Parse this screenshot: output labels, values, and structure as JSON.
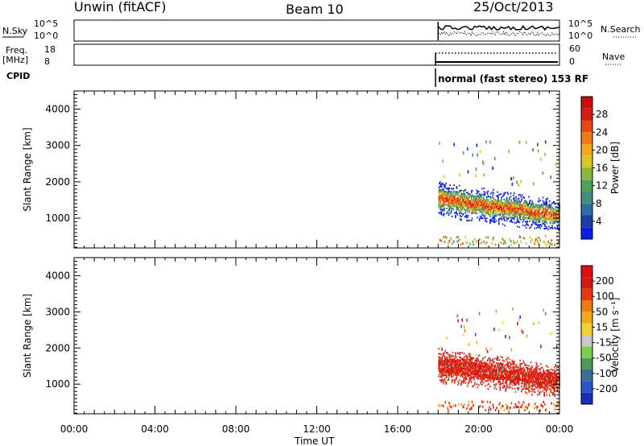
{
  "header": {
    "station": "Unwin (fitACF)",
    "beam": "Beam 10",
    "date": "25/Oct/2013"
  },
  "status_panels": {
    "nsky_label": "N.Sky",
    "nsky_ticks": [
      "10^5",
      "10^0"
    ],
    "nsearch_label": "N.Search",
    "nsearch_ticks": [
      "10^5",
      "10^0"
    ],
    "freq_label": "Freq.",
    "freq_unit": "[MHz]",
    "freq_ticks": [
      "18",
      "8"
    ],
    "nave_label": "Nave",
    "nave_ticks": [
      "60",
      "0"
    ],
    "cpid_label": "CPID",
    "cpid_text": "normal (fast stereo) 153 RF"
  },
  "chart_data": [
    {
      "type": "heatmap",
      "parameter": "Power",
      "xlabel": "Time UT",
      "ylabel": "Slant Range [km]",
      "ylim": [
        180,
        4500
      ],
      "yticks": [
        "4000",
        "3000",
        "2000",
        "1000"
      ],
      "xticks": [
        "00:00",
        "04:00",
        "08:00",
        "12:00",
        "16:00",
        "20:00",
        "00:00"
      ],
      "data_start": "18:00",
      "data_end": "24:00",
      "colorbar": {
        "label": "Power [dB]",
        "ticks": [
          "28",
          "24",
          "20",
          "16",
          "12",
          "8",
          "4"
        ],
        "colors": [
          "#0a1fe6",
          "#1b3fa8",
          "#2d6fa3",
          "#3e8f7f",
          "#4fa05a",
          "#8ab83d",
          "#d9c62a",
          "#f2a81d",
          "#f07a14",
          "#e64a12",
          "#d21c14",
          "#cc0d0d"
        ]
      }
    },
    {
      "type": "heatmap",
      "parameter": "Velocity",
      "xlabel": "Time UT",
      "ylabel": "Slant Range [km]",
      "ylim": [
        180,
        4500
      ],
      "yticks": [
        "4000",
        "3000",
        "2000",
        "1000"
      ],
      "xticks": [
        "00:00",
        "04:00",
        "08:00",
        "12:00",
        "16:00",
        "20:00",
        "00:00"
      ],
      "data_start": "18:00",
      "data_end": "24:00",
      "colorbar": {
        "label": "Velocity [m s⁻¹]",
        "ticks": [
          "200",
          "100",
          "50",
          "15",
          "-15",
          "-50",
          "-100",
          "-200"
        ],
        "colors": [
          "#1a2fb8",
          "#2a55c9",
          "#3b6f9a",
          "#4e9a5a",
          "#7fcf4a",
          "#c9c9c9",
          "#f2d230",
          "#f2a81d",
          "#f07a14",
          "#e33a12",
          "#d41a12",
          "#e00f0f"
        ]
      }
    }
  ]
}
